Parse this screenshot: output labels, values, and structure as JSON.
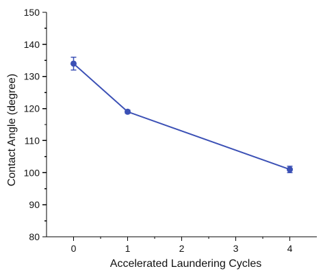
{
  "chart_data": {
    "type": "line",
    "title": "",
    "xlabel": "Accelerated Laundering Cycles",
    "ylabel": "Contact Angle (degree)",
    "xlim": [
      -0.5,
      4.5
    ],
    "ylim": [
      80,
      150
    ],
    "xticks": [
      0,
      1,
      2,
      3,
      4
    ],
    "yticks": [
      80,
      90,
      100,
      110,
      120,
      130,
      140,
      150
    ],
    "grid": false,
    "legend": "none",
    "series": [
      {
        "color": "#3b50b5",
        "x": [
          0,
          1,
          4
        ],
        "y": [
          134,
          119,
          101
        ],
        "error": [
          2,
          0.5,
          1
        ]
      }
    ]
  }
}
